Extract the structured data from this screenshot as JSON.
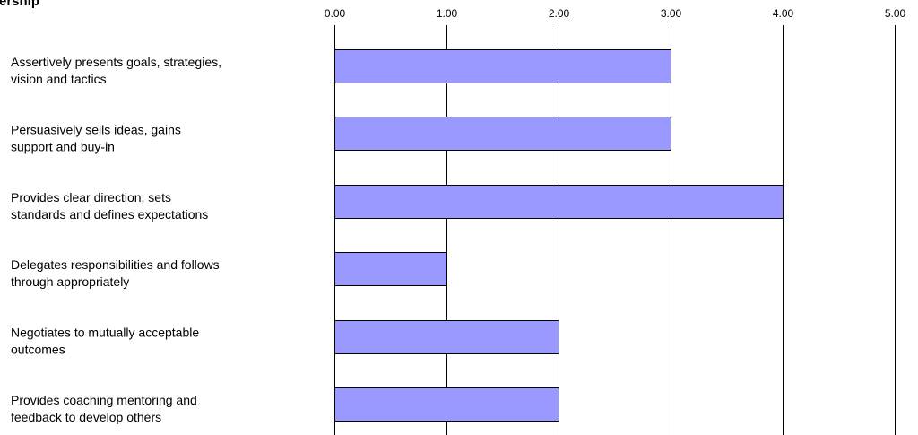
{
  "chart_data": {
    "type": "bar",
    "orientation": "horizontal",
    "title": "ership",
    "xlabel": "",
    "ylabel": "",
    "xlim": [
      0,
      5
    ],
    "ticks": [
      "0.00",
      "1.00",
      "2.00",
      "3.00",
      "4.00",
      "5.00"
    ],
    "tick_position": "top",
    "grid": true,
    "legend": "none",
    "categories": [
      "Assertively presents goals, strategies, vision and tactics",
      "Persuasively sells ideas, gains support and buy-in",
      "Provides clear direction, sets standards and defines expectations",
      "Delegates responsibilities and follows through appropriately",
      "Negotiates to mutually acceptable outcomes",
      "Provides coaching mentoring and feedback to develop others"
    ],
    "category_lines": [
      [
        "Assertively presents goals, strategies,",
        "vision and tactics"
      ],
      [
        "Persuasively sells ideas, gains",
        "support and buy-in"
      ],
      [
        "Provides clear direction, sets",
        "standards and defines expectations"
      ],
      [
        "Delegates responsibilities and follows",
        "through appropriately"
      ],
      [
        "Negotiates to mutually acceptable",
        "outcomes"
      ],
      [
        "Provides coaching mentoring and",
        "feedback to develop others"
      ]
    ],
    "values": [
      3,
      3,
      4,
      1,
      2,
      2
    ],
    "colors": {
      "bar_fill": "#9999ff",
      "bar_stroke": "#000000",
      "grid": "#000000",
      "text": "#000000"
    }
  }
}
